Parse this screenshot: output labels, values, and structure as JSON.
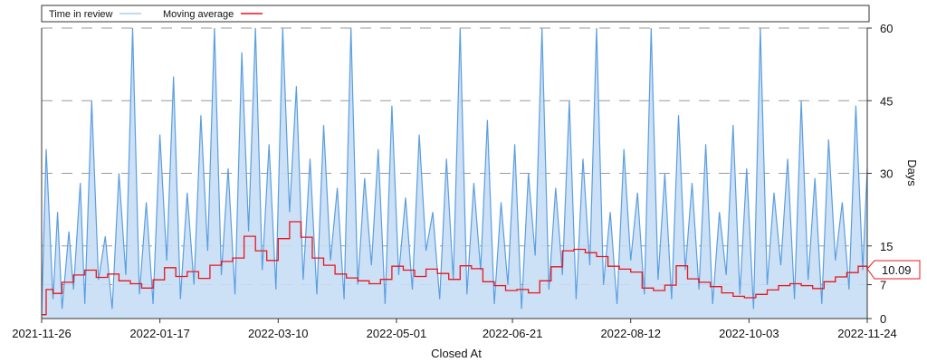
{
  "chart_data": {
    "type": "line",
    "title": "",
    "xlabel": "Closed At",
    "ylabel": "Days",
    "x_range": [
      "2021-11-26",
      "2022-11-24"
    ],
    "ylim": [
      0,
      60
    ],
    "grid": "horizontal dashed",
    "legend_position": "top",
    "x_tick_labels": [
      "2021-11-26",
      "2022-01-17",
      "2022-03-10",
      "2022-05-01",
      "2022-06-21",
      "2022-08-12",
      "2022-10-03",
      "2022-11-24"
    ],
    "y_tick_labels": [
      "0",
      "7",
      "15",
      "30",
      "45",
      "60"
    ],
    "y_tick_values": [
      0,
      7,
      15,
      30,
      45,
      60
    ],
    "series": [
      {
        "name": "Time in review",
        "color": "#5b9ee0",
        "fill": "#c6ddf5",
        "style": "area-line",
        "x": [
          "2021-11-26",
          "2021-11-28",
          "2021-12-01",
          "2021-12-03",
          "2021-12-05",
          "2021-12-08",
          "2021-12-10",
          "2021-12-13",
          "2021-12-15",
          "2021-12-18",
          "2021-12-21",
          "2021-12-24",
          "2021-12-27",
          "2021-12-30",
          "2022-01-02",
          "2022-01-05",
          "2022-01-08",
          "2022-01-11",
          "2022-01-14",
          "2022-01-17",
          "2022-01-20",
          "2022-01-23",
          "2022-01-26",
          "2022-01-29",
          "2022-02-01",
          "2022-02-04",
          "2022-02-07",
          "2022-02-10",
          "2022-02-13",
          "2022-02-16",
          "2022-02-19",
          "2022-02-22",
          "2022-02-25",
          "2022-02-28",
          "2022-03-03",
          "2022-03-06",
          "2022-03-09",
          "2022-03-12",
          "2022-03-15",
          "2022-03-18",
          "2022-03-21",
          "2022-03-24",
          "2022-03-27",
          "2022-03-30",
          "2022-04-02",
          "2022-04-05",
          "2022-04-08",
          "2022-04-11",
          "2022-04-14",
          "2022-04-17",
          "2022-04-20",
          "2022-04-23",
          "2022-04-26",
          "2022-04-29",
          "2022-05-02",
          "2022-05-05",
          "2022-05-08",
          "2022-05-11",
          "2022-05-14",
          "2022-05-17",
          "2022-05-20",
          "2022-05-23",
          "2022-05-26",
          "2022-05-29",
          "2022-06-01",
          "2022-06-04",
          "2022-06-07",
          "2022-06-10",
          "2022-06-13",
          "2022-06-16",
          "2022-06-19",
          "2022-06-22",
          "2022-06-25",
          "2022-06-28",
          "2022-07-01",
          "2022-07-04",
          "2022-07-07",
          "2022-07-10",
          "2022-07-13",
          "2022-07-16",
          "2022-07-19",
          "2022-07-22",
          "2022-07-25",
          "2022-07-28",
          "2022-07-31",
          "2022-08-03",
          "2022-08-06",
          "2022-08-09",
          "2022-08-12",
          "2022-08-15",
          "2022-08-18",
          "2022-08-21",
          "2022-08-24",
          "2022-08-27",
          "2022-08-30",
          "2022-09-02",
          "2022-09-05",
          "2022-09-08",
          "2022-09-11",
          "2022-09-14",
          "2022-09-17",
          "2022-09-20",
          "2022-09-23",
          "2022-09-26",
          "2022-09-29",
          "2022-10-02",
          "2022-10-05",
          "2022-10-08",
          "2022-10-11",
          "2022-10-14",
          "2022-10-17",
          "2022-10-20",
          "2022-10-23",
          "2022-10-26",
          "2022-10-29",
          "2022-11-01",
          "2022-11-04",
          "2022-11-07",
          "2022-11-10",
          "2022-11-13",
          "2022-11-16",
          "2022-11-19",
          "2022-11-22",
          "2022-11-24"
        ],
        "values": [
          1,
          35,
          4,
          22,
          2,
          18,
          6,
          28,
          3,
          45,
          8,
          17,
          2,
          30,
          9,
          62,
          5,
          24,
          3,
          38,
          12,
          50,
          4,
          26,
          7,
          42,
          14,
          62,
          9,
          31,
          5,
          55,
          18,
          62,
          10,
          36,
          6,
          62,
          22,
          48,
          8,
          33,
          5,
          40,
          12,
          27,
          4,
          62,
          7,
          29,
          11,
          35,
          3,
          44,
          9,
          25,
          6,
          38,
          14,
          22,
          4,
          33,
          8,
          62,
          5,
          28,
          10,
          41,
          3,
          24,
          7,
          36,
          2,
          30,
          13,
          62,
          6,
          27,
          9,
          45,
          4,
          33,
          11,
          62,
          7,
          22,
          3,
          35,
          12,
          26,
          5,
          62,
          8,
          30,
          4,
          42,
          10,
          28,
          6,
          36,
          3,
          22,
          9,
          40,
          5,
          31,
          2,
          62,
          7,
          26,
          11,
          33,
          4,
          45,
          8,
          29,
          3,
          37,
          12,
          24,
          6,
          44,
          10,
          31
        ]
      },
      {
        "name": "Moving average",
        "color": "#e8171c",
        "style": "step-line",
        "x": [
          "2021-11-26",
          "2021-11-28",
          "2021-12-01",
          "2021-12-05",
          "2021-12-10",
          "2021-12-15",
          "2021-12-20",
          "2021-12-25",
          "2021-12-30",
          "2022-01-04",
          "2022-01-09",
          "2022-01-14",
          "2022-01-19",
          "2022-01-24",
          "2022-01-29",
          "2022-02-03",
          "2022-02-08",
          "2022-02-13",
          "2022-02-18",
          "2022-02-23",
          "2022-02-28",
          "2022-03-05",
          "2022-03-10",
          "2022-03-15",
          "2022-03-20",
          "2022-03-25",
          "2022-03-30",
          "2022-04-04",
          "2022-04-09",
          "2022-04-14",
          "2022-04-19",
          "2022-04-24",
          "2022-04-29",
          "2022-05-04",
          "2022-05-09",
          "2022-05-14",
          "2022-05-19",
          "2022-05-24",
          "2022-05-29",
          "2022-06-03",
          "2022-06-08",
          "2022-06-13",
          "2022-06-18",
          "2022-06-23",
          "2022-06-28",
          "2022-07-03",
          "2022-07-08",
          "2022-07-13",
          "2022-07-18",
          "2022-07-23",
          "2022-07-28",
          "2022-08-02",
          "2022-08-07",
          "2022-08-12",
          "2022-08-17",
          "2022-08-22",
          "2022-08-27",
          "2022-09-01",
          "2022-09-06",
          "2022-09-11",
          "2022-09-16",
          "2022-09-21",
          "2022-09-26",
          "2022-10-01",
          "2022-10-06",
          "2022-10-11",
          "2022-10-16",
          "2022-10-21",
          "2022-10-26",
          "2022-10-31",
          "2022-11-05",
          "2022-11-10",
          "2022-11-15",
          "2022-11-20",
          "2022-11-24"
        ],
        "values": [
          0.8,
          6.0,
          5.2,
          7.5,
          9.0,
          10.0,
          8.5,
          9.2,
          7.8,
          7.2,
          6.3,
          8.0,
          10.5,
          8.7,
          9.7,
          8.3,
          11.0,
          11.8,
          12.5,
          17.0,
          14.0,
          12.0,
          16.5,
          20.0,
          16.8,
          12.5,
          11.0,
          9.2,
          8.4,
          7.8,
          7.2,
          8.1,
          10.8,
          10.0,
          8.7,
          10.2,
          9.3,
          8.1,
          10.9,
          10.3,
          7.6,
          6.8,
          5.8,
          6.0,
          5.3,
          7.8,
          10.7,
          14.0,
          14.3,
          13.6,
          12.8,
          10.8,
          10.2,
          9.6,
          6.3,
          5.8,
          6.9,
          10.9,
          8.2,
          7.5,
          6.6,
          5.3,
          4.6,
          4.3,
          5.0,
          5.9,
          6.8,
          7.2,
          6.8,
          6.2,
          7.6,
          8.6,
          9.5,
          10.8,
          10.09
        ]
      }
    ],
    "current_value_label": "10.09"
  }
}
